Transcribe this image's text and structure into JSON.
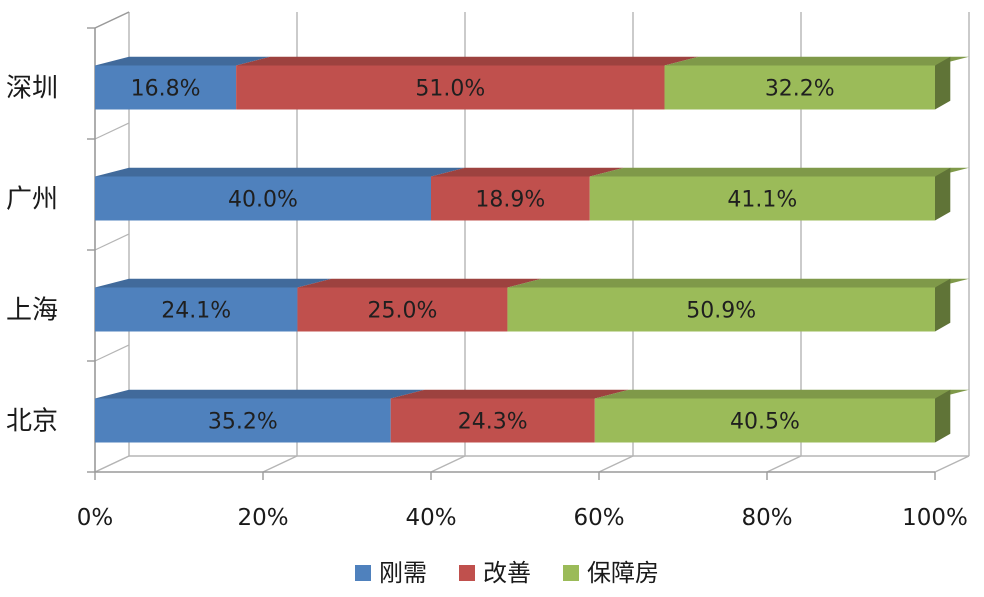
{
  "chart_data": {
    "type": "bar",
    "orientation": "horizontal",
    "stacked": "percent",
    "categories": [
      "深圳",
      "广州",
      "上海",
      "北京"
    ],
    "series": [
      {
        "name": "刚需",
        "color": "#4F81BD",
        "values": [
          16.8,
          40.0,
          24.1,
          35.2
        ],
        "labels": [
          "16.8%",
          "40.0%",
          "24.1%",
          "35.2%"
        ]
      },
      {
        "name": "改善",
        "color": "#C0504D",
        "values": [
          51.0,
          18.9,
          25.0,
          24.3
        ],
        "labels": [
          "51.0%",
          "18.9%",
          "25.0%",
          "24.3%"
        ]
      },
      {
        "name": "保障房",
        "color": "#9BBB59",
        "values": [
          32.2,
          41.1,
          50.9,
          40.5
        ],
        "labels": [
          "32.2%",
          "41.1%",
          "50.9%",
          "40.5%"
        ]
      }
    ],
    "x_ticks": [
      "0%",
      "20%",
      "40%",
      "60%",
      "80%",
      "100%"
    ],
    "xlim": [
      0,
      100
    ],
    "grid": true,
    "legend_position": "bottom",
    "style": "3d"
  }
}
